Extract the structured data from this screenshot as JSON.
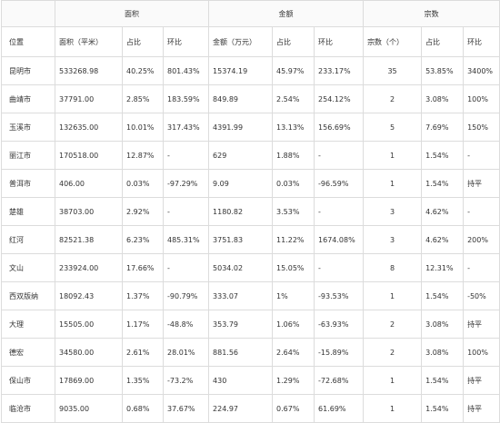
{
  "groups": {
    "area": "面积",
    "amount": "金额",
    "count": "宗数"
  },
  "columns": {
    "location": "位置",
    "area": "面积（平米）",
    "area_share": "占比",
    "area_change": "环比",
    "amount": "金额（万元）",
    "amount_share": "占比",
    "amount_change": "环比",
    "count": "宗数（个）",
    "count_share": "占比",
    "count_change": "环比"
  },
  "rows": [
    [
      "昆明市",
      "533268.98",
      "40.25%",
      "801.43%",
      "15374.19",
      "45.97%",
      "233.17%",
      "35",
      "53.85%",
      "3400%"
    ],
    [
      "曲靖市",
      "37791.00",
      "2.85%",
      "183.59%",
      "849.89",
      "2.54%",
      "254.12%",
      "2",
      "3.08%",
      "100%"
    ],
    [
      "玉溪市",
      "132635.00",
      "10.01%",
      "317.43%",
      "4391.99",
      "13.13%",
      "156.69%",
      "5",
      "7.69%",
      "150%"
    ],
    [
      "丽江市",
      "170518.00",
      "12.87%",
      "-",
      "629",
      "1.88%",
      "-",
      "1",
      "1.54%",
      "-"
    ],
    [
      "普洱市",
      "406.00",
      "0.03%",
      "-97.29%",
      "9.09",
      "0.03%",
      "-96.59%",
      "1",
      "1.54%",
      "持平"
    ],
    [
      "楚雄",
      "38703.00",
      "2.92%",
      "-",
      "1180.82",
      "3.53%",
      "-",
      "3",
      "4.62%",
      "-"
    ],
    [
      "红河",
      "82521.38",
      "6.23%",
      "485.31%",
      "3751.83",
      "11.22%",
      "1674.08%",
      "3",
      "4.62%",
      "200%"
    ],
    [
      "文山",
      "233924.00",
      "17.66%",
      "-",
      "5034.02",
      "15.05%",
      "-",
      "8",
      "12.31%",
      "-"
    ],
    [
      "西双版纳",
      "18092.43",
      "1.37%",
      "-90.79%",
      "333.07",
      "1%",
      "-93.53%",
      "1",
      "1.54%",
      "-50%"
    ],
    [
      "大理",
      "15505.00",
      "1.17%",
      "-48.8%",
      "353.79",
      "1.06%",
      "-63.93%",
      "2",
      "3.08%",
      "持平"
    ],
    [
      "德宏",
      "34580.00",
      "2.61%",
      "28.01%",
      "881.56",
      "2.64%",
      "-15.89%",
      "2",
      "3.08%",
      "100%"
    ],
    [
      "保山市",
      "17869.00",
      "1.35%",
      "-73.2%",
      "430",
      "1.29%",
      "-72.68%",
      "1",
      "1.54%",
      "持平"
    ],
    [
      "临沧市",
      "9035.00",
      "0.68%",
      "37.67%",
      "224.97",
      "0.67%",
      "61.69%",
      "1",
      "1.54%",
      "持平"
    ]
  ]
}
